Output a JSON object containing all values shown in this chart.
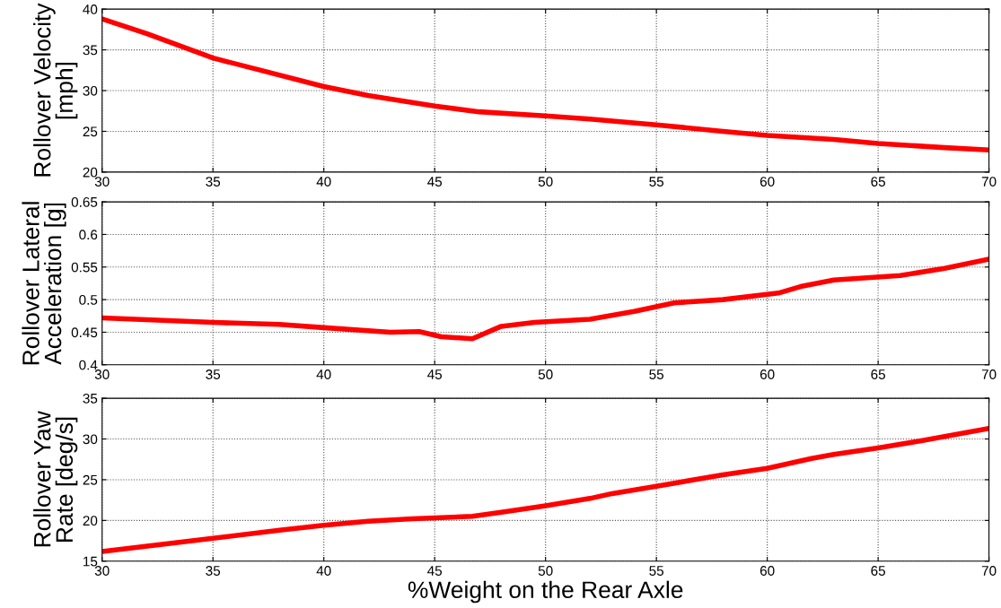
{
  "chart_data": [
    {
      "type": "line",
      "ylabel": "Rollover Velocity\n[mph]",
      "xlim": [
        30,
        70
      ],
      "xticks": [
        30,
        35,
        40,
        45,
        50,
        55,
        60,
        65,
        70
      ],
      "ylim": [
        20,
        40
      ],
      "yticks": [
        20,
        25,
        30,
        35,
        40
      ],
      "grid": true,
      "x": [
        30,
        32,
        35,
        37,
        40,
        42,
        45,
        47,
        50,
        52,
        55,
        58,
        60,
        63,
        65,
        68,
        70
      ],
      "series": [
        {
          "color": "#ff0000",
          "values": [
            38.8,
            37,
            34,
            32.6,
            30.5,
            29.4,
            28.1,
            27.4,
            26.9,
            26.5,
            25.8,
            25,
            24.5,
            24,
            23.5,
            23,
            22.7
          ]
        }
      ]
    },
    {
      "type": "line",
      "ylabel": "Rollover Lateral\nAcceleration [g]",
      "xlim": [
        30,
        70
      ],
      "xticks": [
        30,
        35,
        40,
        45,
        50,
        55,
        60,
        65,
        70
      ],
      "ylim": [
        0.4,
        0.65
      ],
      "yticks": [
        0.4,
        0.45,
        0.5,
        0.55,
        0.6,
        0.65
      ],
      "grid": true,
      "x": [
        30,
        35,
        38,
        40,
        43,
        44.3,
        45.3,
        46.7,
        48,
        49.5,
        52,
        54,
        55.8,
        58,
        60.5,
        61.5,
        63,
        66,
        68,
        70
      ],
      "series": [
        {
          "color": "#ff0000",
          "values": [
            0.472,
            0.465,
            0.462,
            0.457,
            0.45,
            0.451,
            0.443,
            0.44,
            0.459,
            0.465,
            0.47,
            0.482,
            0.495,
            0.5,
            0.51,
            0.52,
            0.53,
            0.537,
            0.548,
            0.562
          ]
        }
      ]
    },
    {
      "type": "line",
      "ylabel": "Rollover Yaw\nRate [deg/s]",
      "xlabel": "%Weight on the Rear Axle",
      "xlim": [
        30,
        70
      ],
      "xticks": [
        30,
        35,
        40,
        45,
        50,
        55,
        60,
        65,
        70
      ],
      "ylim": [
        15,
        35
      ],
      "yticks": [
        15,
        20,
        25,
        30,
        35
      ],
      "grid": true,
      "x": [
        30,
        35,
        38,
        40,
        42,
        44,
        46.7,
        48,
        50,
        52,
        53,
        55,
        58,
        60,
        62,
        63,
        65,
        67,
        70
      ],
      "series": [
        {
          "color": "#ff0000",
          "values": [
            16.2,
            17.8,
            18.8,
            19.4,
            19.9,
            20.2,
            20.5,
            21,
            21.8,
            22.7,
            23.3,
            24.2,
            25.6,
            26.4,
            27.6,
            28.1,
            28.9,
            29.8,
            31.3
          ]
        }
      ]
    }
  ]
}
